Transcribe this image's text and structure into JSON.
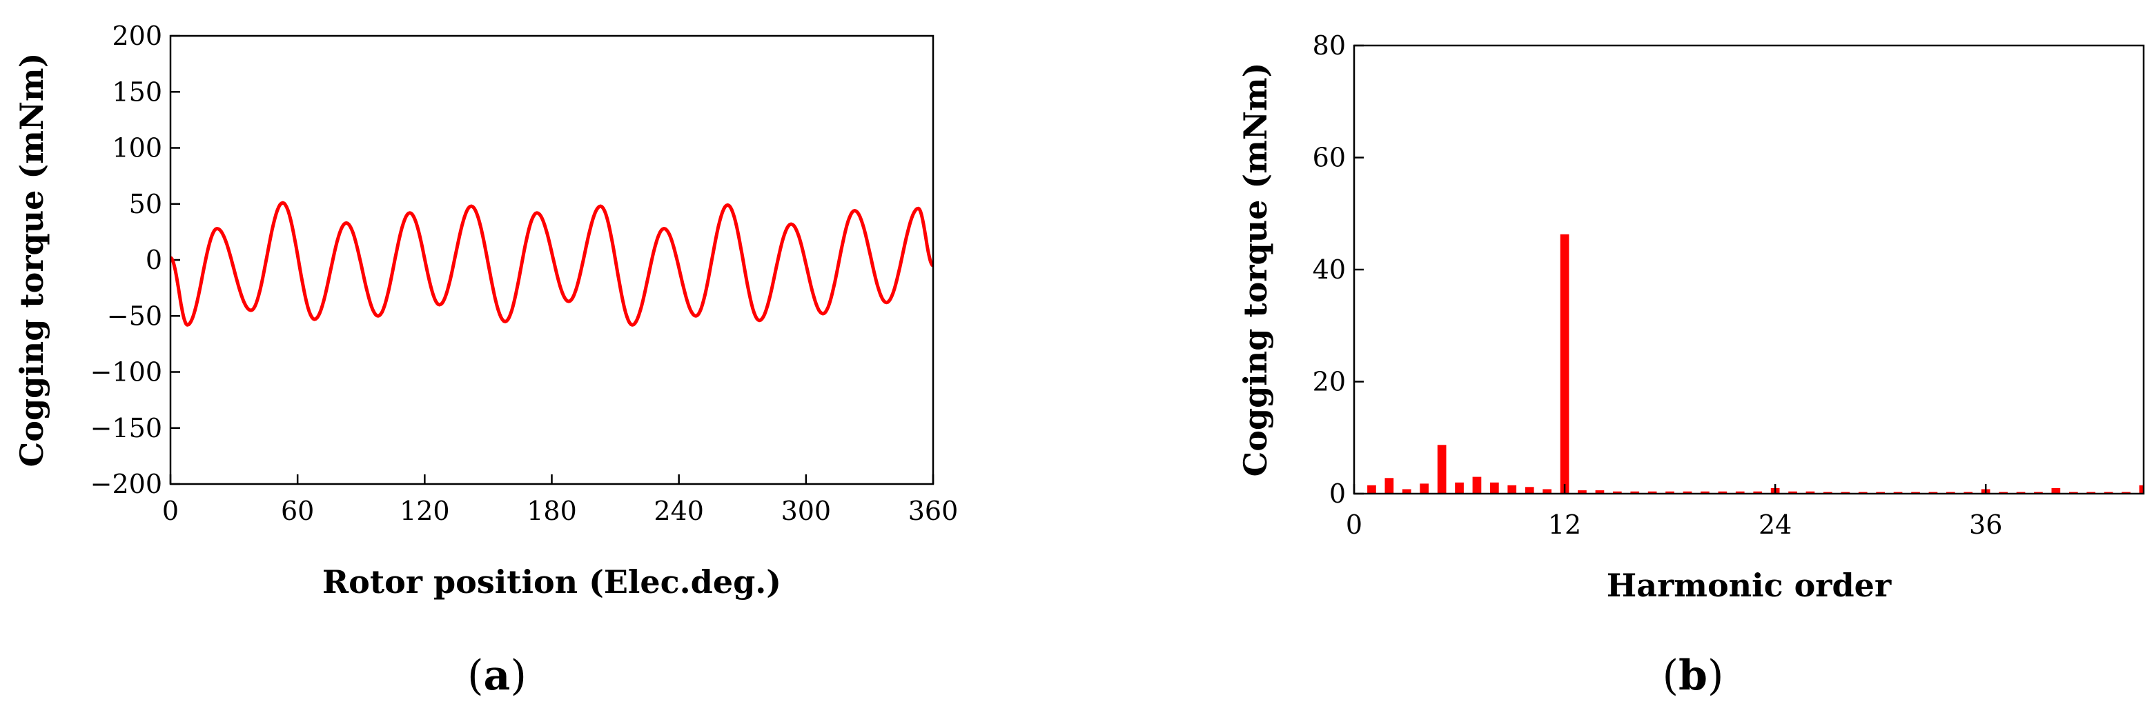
{
  "chart_data": [
    {
      "type": "line",
      "panel_label": "a",
      "xlabel": "Rotor position (Elec.deg.)",
      "ylabel": "Cogging torque (mNm)",
      "xlim": [
        0,
        360
      ],
      "ylim": [
        -200,
        200
      ],
      "x_ticks": [
        0,
        60,
        120,
        180,
        240,
        300,
        360
      ],
      "y_ticks": [
        200,
        150,
        100,
        50,
        0,
        -50,
        -100,
        -150,
        -200
      ],
      "y_tick_labels": [
        "200",
        "150",
        "100",
        "50",
        "0",
        "−50",
        "−100",
        "−150",
        "−200"
      ],
      "grid": false,
      "series": [
        {
          "name": "Cogging torque",
          "color": "#ff0000",
          "extrema": [
            [
              0,
              2
            ],
            [
              8,
              -58
            ],
            [
              22,
              28
            ],
            [
              38,
              -45
            ],
            [
              53,
              51
            ],
            [
              68,
              -53
            ],
            [
              83,
              33
            ],
            [
              98,
              -50
            ],
            [
              113,
              42
            ],
            [
              127,
              -40
            ],
            [
              142,
              48
            ],
            [
              158,
              -55
            ],
            [
              173,
              42
            ],
            [
              188,
              -37
            ],
            [
              203,
              48
            ],
            [
              218,
              -58
            ],
            [
              233,
              28
            ],
            [
              248,
              -50
            ],
            [
              263,
              49
            ],
            [
              278,
              -54
            ],
            [
              293,
              32
            ],
            [
              308,
              -48
            ],
            [
              323,
              44
            ],
            [
              338,
              -38
            ],
            [
              353,
              46
            ],
            [
              360,
              -5
            ]
          ]
        }
      ]
    },
    {
      "type": "bar",
      "panel_label": "b",
      "xlabel": "Harmonic order",
      "ylabel": "Cogging torque (mNm)",
      "xlim": [
        0,
        45
      ],
      "ylim": [
        0,
        80
      ],
      "x_ticks": [
        0,
        12,
        24,
        36
      ],
      "y_ticks": [
        80,
        60,
        40,
        20,
        0
      ],
      "grid": false,
      "categories": [
        1,
        2,
        3,
        4,
        5,
        6,
        7,
        8,
        9,
        10,
        11,
        12,
        13,
        14,
        15,
        16,
        17,
        18,
        19,
        20,
        21,
        22,
        23,
        24,
        25,
        26,
        27,
        28,
        29,
        30,
        31,
        32,
        33,
        34,
        35,
        36,
        37,
        38,
        39,
        40,
        41,
        42,
        43,
        44,
        45
      ],
      "series": [
        {
          "name": "Cogging torque",
          "color": "#ff0000",
          "values": [
            1.5,
            2.8,
            0.8,
            1.8,
            8.7,
            2.0,
            3.0,
            2.0,
            1.5,
            1.2,
            0.8,
            46.3,
            0.6,
            0.6,
            0.4,
            0.4,
            0.4,
            0.4,
            0.4,
            0.4,
            0.4,
            0.4,
            0.4,
            1.0,
            0.4,
            0.4,
            0.3,
            0.3,
            0.3,
            0.3,
            0.3,
            0.3,
            0.3,
            0.3,
            0.3,
            0.8,
            0.3,
            0.3,
            0.3,
            1.0,
            0.3,
            0.3,
            0.3,
            0.3,
            1.5
          ]
        }
      ]
    }
  ]
}
